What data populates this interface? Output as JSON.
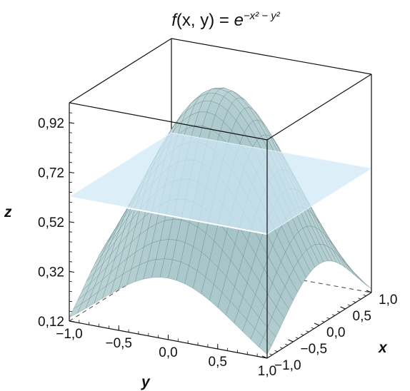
{
  "chart_data": {
    "type": "surface3d",
    "title": {
      "func": "f",
      "args": "(x, y) = ",
      "base": "e",
      "exponent": "−x² − y²"
    },
    "surface": "z = exp(-x^2 - y^2)",
    "plane": {
      "z": 0.62
    },
    "x_axis": {
      "label": "x",
      "range": [
        -1.0,
        1.0
      ],
      "ticks": [
        "−1,0",
        "−0,5",
        "0,0",
        "0,5",
        "1,0"
      ],
      "tick_values": [
        -1.0,
        -0.5,
        0.0,
        0.5,
        1.0
      ]
    },
    "y_axis": {
      "label": "y",
      "range": [
        -1.0,
        1.0
      ],
      "ticks": [
        "−1,0",
        "−0,5",
        "0,0",
        "0,5",
        "1,0"
      ],
      "tick_values": [
        -1.0,
        -0.5,
        0.0,
        0.5,
        1.0
      ]
    },
    "z_axis": {
      "label": "z",
      "range": [
        0.12,
        1.0
      ],
      "ticks": [
        "0,12",
        "0,32",
        "0,52",
        "0,72",
        "0,92"
      ],
      "tick_values": [
        0.12,
        0.32,
        0.52,
        0.72,
        0.92
      ]
    },
    "colors": {
      "surface": "#b9d3d6",
      "surface_dark": "#6f9ea6",
      "plane": "#cfe8f5",
      "mesh": "#5c7c82",
      "box": "#111111"
    },
    "grid": true
  }
}
